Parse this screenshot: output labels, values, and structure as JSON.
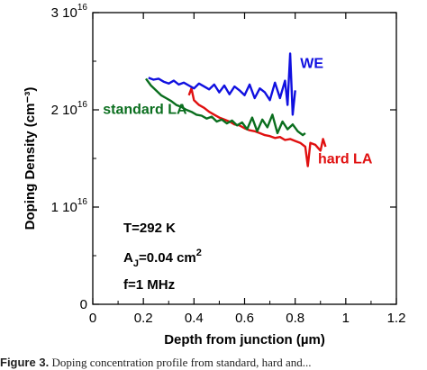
{
  "chart_data": {
    "type": "line",
    "title": "",
    "xlabel": "Depth from junction (µm)",
    "ylabel": "Doping Density (cm⁻³)",
    "xlim": [
      0,
      1.2
    ],
    "ylim": [
      0,
      3e+16
    ],
    "x_ticks": [
      0,
      0.2,
      0.4,
      0.6,
      0.8,
      1,
      1.2
    ],
    "x_tick_labels": [
      "0",
      "0.2",
      "0.4",
      "0.6",
      "0.8",
      "1",
      "1.2"
    ],
    "y_ticks": [
      0,
      1e+16,
      2e+16,
      3e+16
    ],
    "y_tick_labels": [
      {
        "mantissa": "0",
        "exp": ""
      },
      {
        "mantissa": "1 10",
        "exp": "16"
      },
      {
        "mantissa": "2 10",
        "exp": "16"
      },
      {
        "mantissa": "3 10",
        "exp": "16"
      }
    ],
    "grid": false,
    "legend": "inline labels",
    "series": [
      {
        "name": "WE",
        "color": "#1010e0",
        "x": [
          0.22,
          0.24,
          0.26,
          0.28,
          0.3,
          0.32,
          0.34,
          0.36,
          0.38,
          0.4,
          0.42,
          0.44,
          0.46,
          0.48,
          0.5,
          0.52,
          0.54,
          0.56,
          0.58,
          0.6,
          0.62,
          0.64,
          0.66,
          0.68,
          0.7,
          0.72,
          0.74,
          0.76,
          0.77,
          0.78,
          0.79,
          0.8
        ],
        "y": [
          2.33e+16,
          2.31e+16,
          2.32e+16,
          2.29e+16,
          2.27e+16,
          2.3e+16,
          2.26e+16,
          2.28e+16,
          2.25e+16,
          2.22e+16,
          2.27e+16,
          2.24e+16,
          2.21e+16,
          2.26e+16,
          2.18e+16,
          2.25e+16,
          2.16e+16,
          2.24e+16,
          2.2e+16,
          2.15e+16,
          2.26e+16,
          2.12e+16,
          2.22e+16,
          2.18e+16,
          2.1e+16,
          2.28e+16,
          2.12e+16,
          2.3e+16,
          2.05e+16,
          2.58e+16,
          1.95e+16,
          2.2e+16
        ]
      },
      {
        "name": "standard LA",
        "color": "#0a6e1e",
        "x": [
          0.21,
          0.23,
          0.25,
          0.27,
          0.29,
          0.31,
          0.33,
          0.35,
          0.37,
          0.39,
          0.41,
          0.43,
          0.45,
          0.47,
          0.49,
          0.51,
          0.53,
          0.55,
          0.57,
          0.59,
          0.61,
          0.63,
          0.65,
          0.67,
          0.69,
          0.71,
          0.73,
          0.75,
          0.77,
          0.79,
          0.81,
          0.83,
          0.84
        ],
        "y": [
          2.32e+16,
          2.25e+16,
          2.2e+16,
          2.15e+16,
          2.12e+16,
          2.09e+16,
          2.05e+16,
          2.03e+16,
          2e+16,
          1.98e+16,
          1.95e+16,
          1.94e+16,
          1.91e+16,
          1.93e+16,
          1.88e+16,
          1.9e+16,
          1.86e+16,
          1.89e+16,
          1.84e+16,
          1.87e+16,
          1.8e+16,
          1.92e+16,
          1.78e+16,
          1.9e+16,
          1.82e+16,
          1.95e+16,
          1.76e+16,
          1.88e+16,
          1.8e+16,
          1.85e+16,
          1.78e+16,
          1.74e+16,
          1.76e+16
        ]
      },
      {
        "name": "hard LA",
        "color": "#e01010",
        "x": [
          0.38,
          0.39,
          0.4,
          0.42,
          0.44,
          0.46,
          0.48,
          0.5,
          0.52,
          0.54,
          0.56,
          0.58,
          0.6,
          0.62,
          0.64,
          0.66,
          0.68,
          0.7,
          0.72,
          0.74,
          0.76,
          0.78,
          0.8,
          0.82,
          0.84,
          0.85,
          0.86,
          0.88,
          0.9,
          0.91,
          0.92
        ],
        "y": [
          2.15e+16,
          2.22e+16,
          2.1e+16,
          2.05e+16,
          2.02e+16,
          1.98e+16,
          1.95e+16,
          1.92e+16,
          1.9e+16,
          1.88e+16,
          1.85e+16,
          1.84e+16,
          1.81e+16,
          1.79e+16,
          1.78e+16,
          1.76e+16,
          1.74e+16,
          1.73e+16,
          1.71e+16,
          1.72e+16,
          1.69e+16,
          1.7e+16,
          1.68e+16,
          1.66e+16,
          1.62e+16,
          1.42e+16,
          1.66e+16,
          1.64e+16,
          1.58e+16,
          1.7e+16,
          1.62e+16
        ]
      }
    ],
    "series_labels": [
      {
        "text": "WE",
        "color": "#1010e0",
        "x": 0.82,
        "y": 2.43e+16
      },
      {
        "text": "standard LA",
        "color": "#0a6e1e",
        "x": 0.04,
        "y": 1.96e+16
      },
      {
        "text": "hard LA",
        "color": "#e01010",
        "x": 0.89,
        "y": 1.45e+16
      }
    ],
    "annotations": {
      "temperature": "T=292 K",
      "area_prefix": "A",
      "area_sub": "J",
      "area_value": "=0.04 cm",
      "area_exp": "2",
      "frequency": "f=1 MHz"
    }
  },
  "caption": {
    "lead": "Figure 3.",
    "text": "Doping concentration profile from standard, hard and..."
  }
}
